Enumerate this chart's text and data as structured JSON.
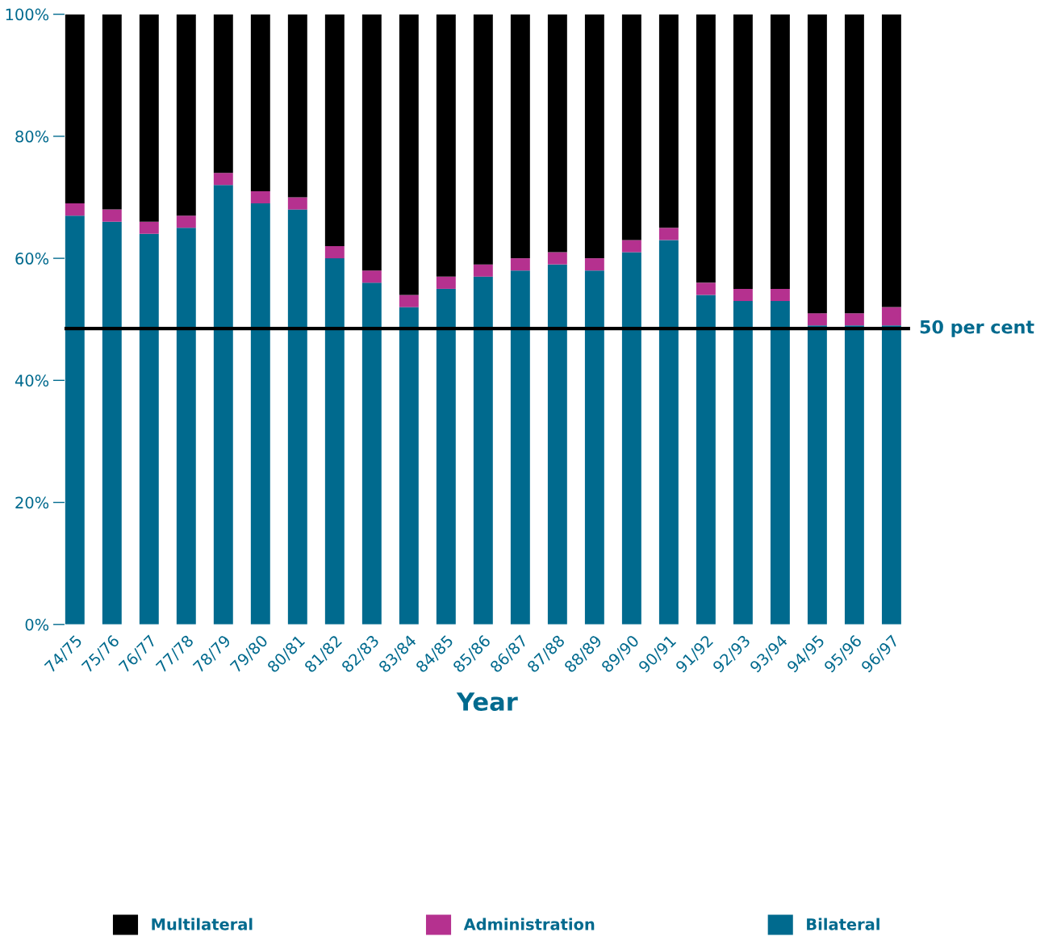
{
  "chart_data": {
    "type": "bar",
    "stacked": true,
    "xlabel": "Year",
    "categories": [
      "74/75",
      "75/76",
      "76/77",
      "77/78",
      "78/79",
      "79/80",
      "80/81",
      "81/82",
      "82/83",
      "83/84",
      "84/85",
      "85/86",
      "86/87",
      "87/88",
      "88/89",
      "89/90",
      "90/91",
      "91/92",
      "92/93",
      "93/94",
      "94/95",
      "95/96",
      "96/97"
    ],
    "series": [
      {
        "name": "Bilateral",
        "color": "#006a8e",
        "values": [
          67,
          66,
          64,
          65,
          72,
          69,
          68,
          60,
          56,
          52,
          55,
          57,
          58,
          59,
          58,
          61,
          63,
          54,
          53,
          53,
          49,
          49,
          49
        ]
      },
      {
        "name": "Administration",
        "color": "#b5318f",
        "values": [
          2,
          2,
          2,
          2,
          2,
          2,
          2,
          2,
          2,
          2,
          2,
          2,
          2,
          2,
          2,
          2,
          2,
          2,
          2,
          2,
          2,
          2,
          3
        ]
      },
      {
        "name": "Multilateral",
        "color": "#000000",
        "values": [
          31,
          32,
          34,
          33,
          26,
          29,
          30,
          38,
          42,
          46,
          43,
          41,
          40,
          39,
          40,
          37,
          35,
          44,
          45,
          45,
          49,
          49,
          48
        ]
      }
    ],
    "ylim": [
      0,
      100
    ],
    "yticks": [
      {
        "value": 0,
        "label": "0%"
      },
      {
        "value": 20,
        "label": "20%"
      },
      {
        "value": 40,
        "label": "40%"
      },
      {
        "value": 60,
        "label": "60%"
      },
      {
        "value": 80,
        "label": "80%"
      },
      {
        "value": 100,
        "label": "100%"
      }
    ],
    "ref_lines": [
      {
        "axis": "y",
        "value": 48.5,
        "label": "50 per cent",
        "color": "#000000"
      }
    ],
    "grid": false,
    "legend": "bottom"
  }
}
